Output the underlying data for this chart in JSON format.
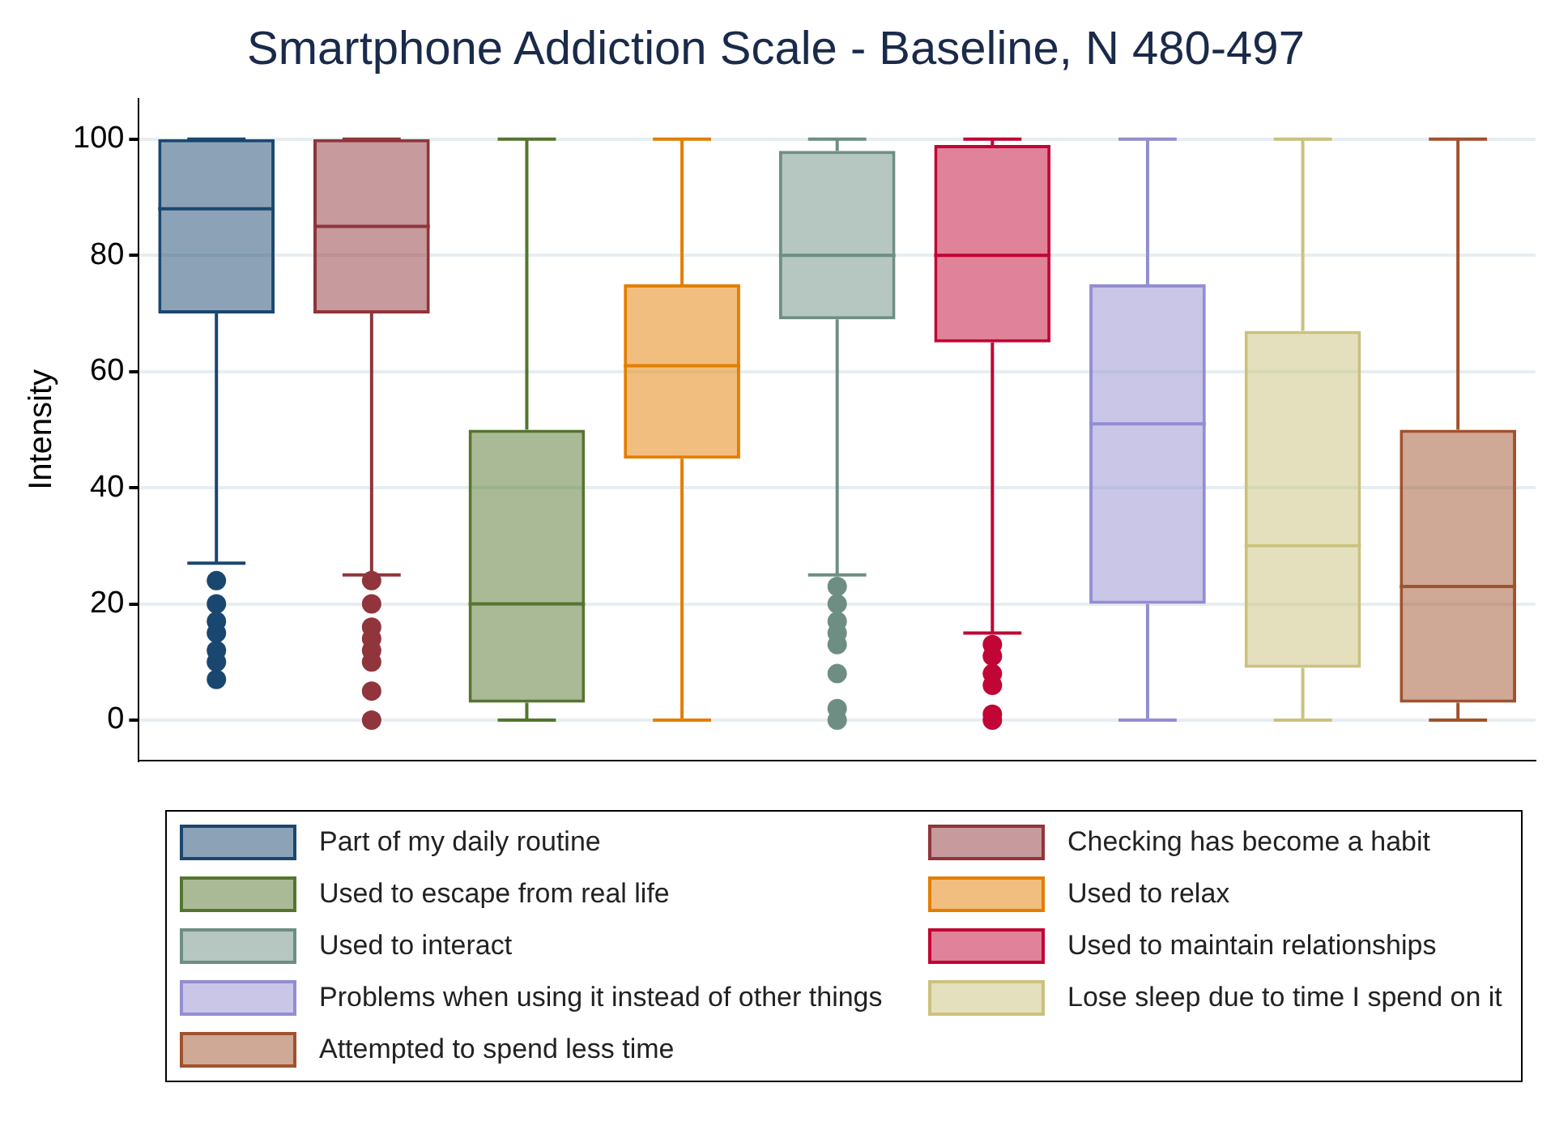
{
  "chart_data": {
    "type": "box",
    "title": "Smartphone Addiction Scale - Baseline, N 480-497",
    "ylabel": "Intensity",
    "categories": [
      null,
      null,
      null,
      null,
      null,
      null,
      null,
      null,
      null
    ],
    "ylim": [
      -7,
      107
    ],
    "yticks": [
      0,
      20,
      40,
      60,
      80,
      100
    ],
    "grid": "y",
    "legend": "bottom",
    "series": [
      {
        "name": "Part of my daily routine",
        "color": "#1a476f",
        "boxes": [
          {
            "low": 27,
            "q1": 70,
            "median": 88,
            "q3": 100,
            "high": 100,
            "outliers": [
              24,
              20,
              17,
              15,
              12,
              10,
              7
            ]
          },
          null,
          null,
          null,
          null,
          null,
          null,
          null,
          null
        ]
      },
      {
        "name": "Checking has become a habit",
        "color": "#90353b",
        "boxes": [
          null,
          {
            "low": 25,
            "q1": 70,
            "median": 85,
            "q3": 100,
            "high": 100,
            "outliers": [
              24,
              20,
              16,
              14,
              12,
              10,
              5,
              0
            ]
          },
          null,
          null,
          null,
          null,
          null,
          null,
          null
        ]
      },
      {
        "name": "Used to escape from real life",
        "color": "#55752f",
        "boxes": [
          null,
          null,
          {
            "low": 0,
            "q1": 3,
            "median": 20,
            "q3": 50,
            "high": 100
          },
          null,
          null,
          null,
          null,
          null,
          null
        ]
      },
      {
        "name": "Used to relax",
        "color": "#e37e00",
        "boxes": [
          null,
          null,
          null,
          {
            "low": 0,
            "q1": 45,
            "median": 61,
            "q3": 75,
            "high": 100
          },
          null,
          null,
          null,
          null,
          null
        ]
      },
      {
        "name": "Used to interact",
        "color": "#6e8e84",
        "boxes": [
          null,
          null,
          null,
          null,
          {
            "low": 25,
            "q1": 69,
            "median": 80,
            "q3": 98,
            "high": 100,
            "outliers": [
              23,
              20,
              17,
              15,
              13,
              8,
              2,
              0
            ]
          },
          null,
          null,
          null,
          null
        ]
      },
      {
        "name": "Used to maintain relationships",
        "color": "#c10534",
        "boxes": [
          null,
          null,
          null,
          null,
          null,
          {
            "low": 15,
            "q1": 65,
            "median": 80,
            "q3": 99,
            "high": 100,
            "outliers": [
              13,
              11,
              8,
              6,
              1,
              0
            ]
          },
          null,
          null,
          null
        ]
      },
      {
        "name": "Problems when using it instead of other things",
        "color": "#938dd2",
        "boxes": [
          null,
          null,
          null,
          null,
          null,
          null,
          {
            "low": 0,
            "q1": 20,
            "median": 51,
            "q3": 75,
            "high": 100
          },
          null,
          null
        ]
      },
      {
        "name": "Lose sleep due to time I spend on it",
        "color": "#cac27e",
        "boxes": [
          null,
          null,
          null,
          null,
          null,
          null,
          null,
          {
            "low": 0,
            "q1": 9,
            "median": 30,
            "q3": 67,
            "high": 100
          },
          null
        ]
      },
      {
        "name": "Attempted to spend less time",
        "color": "#a0522d",
        "boxes": [
          null,
          null,
          null,
          null,
          null,
          null,
          null,
          null,
          {
            "low": 0,
            "q1": 3,
            "median": 23,
            "q3": 50,
            "high": 100
          }
        ]
      }
    ]
  }
}
